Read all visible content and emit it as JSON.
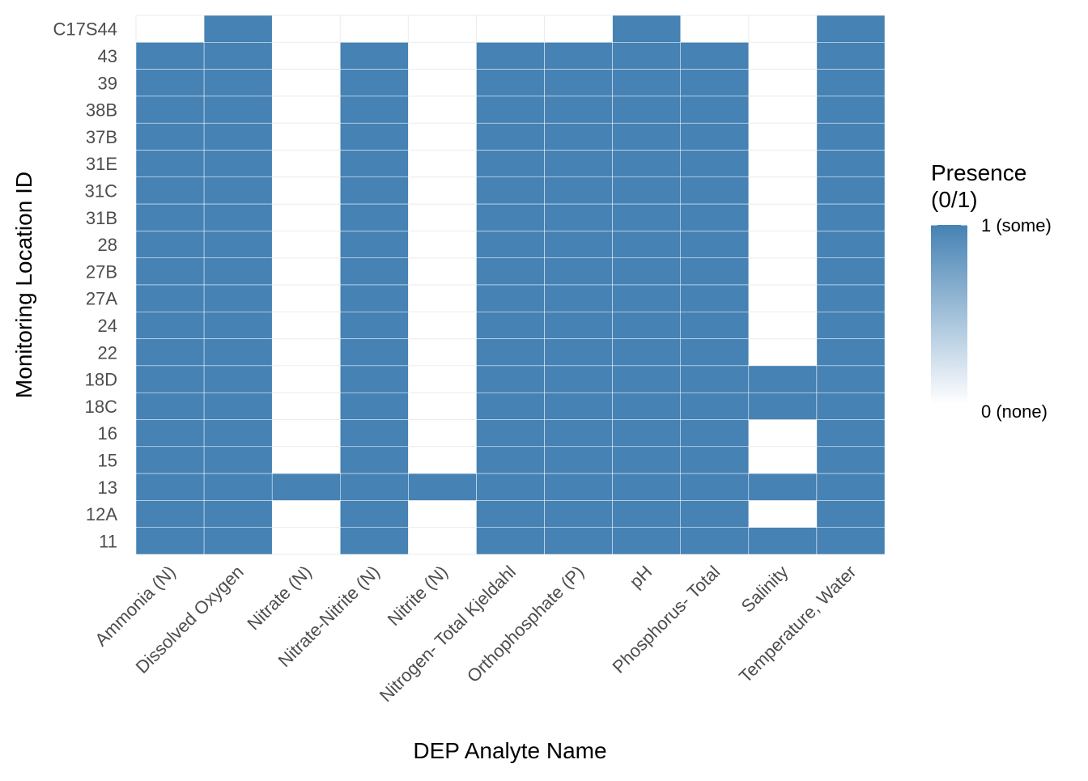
{
  "chart_data": {
    "type": "heatmap",
    "title": "",
    "xlabel": "DEP Analyte Name",
    "ylabel": "Monitoring Location ID",
    "x_categories": [
      "Ammonia (N)",
      "Dissolved Oxygen",
      "Nitrate (N)",
      "Nitrate-Nitrite (N)",
      "Nitrite (N)",
      "Nitrogen- Total Kjeldahl",
      "Orthophosphate (P)",
      "pH",
      "Phosphorus- Total",
      "Salinity",
      "Temperature, Water"
    ],
    "y_categories": [
      "C17S44",
      "43",
      "39",
      "38B",
      "37B",
      "31E",
      "31C",
      "31B",
      "28",
      "27B",
      "27A",
      "24",
      "22",
      "18D",
      "18C",
      "16",
      "15",
      "13",
      "12A",
      "11"
    ],
    "values": [
      [
        0,
        1,
        0,
        0,
        0,
        0,
        0,
        1,
        0,
        0,
        1
      ],
      [
        1,
        1,
        0,
        1,
        0,
        1,
        1,
        1,
        1,
        0,
        1
      ],
      [
        1,
        1,
        0,
        1,
        0,
        1,
        1,
        1,
        1,
        0,
        1
      ],
      [
        1,
        1,
        0,
        1,
        0,
        1,
        1,
        1,
        1,
        0,
        1
      ],
      [
        1,
        1,
        0,
        1,
        0,
        1,
        1,
        1,
        1,
        0,
        1
      ],
      [
        1,
        1,
        0,
        1,
        0,
        1,
        1,
        1,
        1,
        0,
        1
      ],
      [
        1,
        1,
        0,
        1,
        0,
        1,
        1,
        1,
        1,
        0,
        1
      ],
      [
        1,
        1,
        0,
        1,
        0,
        1,
        1,
        1,
        1,
        0,
        1
      ],
      [
        1,
        1,
        0,
        1,
        0,
        1,
        1,
        1,
        1,
        0,
        1
      ],
      [
        1,
        1,
        0,
        1,
        0,
        1,
        1,
        1,
        1,
        0,
        1
      ],
      [
        1,
        1,
        0,
        1,
        0,
        1,
        1,
        1,
        1,
        0,
        1
      ],
      [
        1,
        1,
        0,
        1,
        0,
        1,
        1,
        1,
        1,
        0,
        1
      ],
      [
        1,
        1,
        0,
        1,
        0,
        1,
        1,
        1,
        1,
        0,
        1
      ],
      [
        1,
        1,
        0,
        1,
        0,
        1,
        1,
        1,
        1,
        1,
        1
      ],
      [
        1,
        1,
        0,
        1,
        0,
        1,
        1,
        1,
        1,
        1,
        1
      ],
      [
        1,
        1,
        0,
        1,
        0,
        1,
        1,
        1,
        1,
        0,
        1
      ],
      [
        1,
        1,
        0,
        1,
        0,
        1,
        1,
        1,
        1,
        0,
        1
      ],
      [
        1,
        1,
        1,
        1,
        1,
        1,
        1,
        1,
        1,
        1,
        1
      ],
      [
        1,
        1,
        0,
        1,
        0,
        1,
        1,
        1,
        1,
        0,
        1
      ],
      [
        1,
        1,
        0,
        1,
        0,
        1,
        1,
        1,
        1,
        1,
        1
      ]
    ],
    "legend": {
      "title_lines": [
        "Presence",
        "(0/1)"
      ],
      "high_label": "1 (some)",
      "low_label": "0 (none)",
      "placement": "right"
    },
    "colors": {
      "high": "#4682b4",
      "low": "#ffffff",
      "grid": "#ebebeb"
    },
    "grid": true
  }
}
